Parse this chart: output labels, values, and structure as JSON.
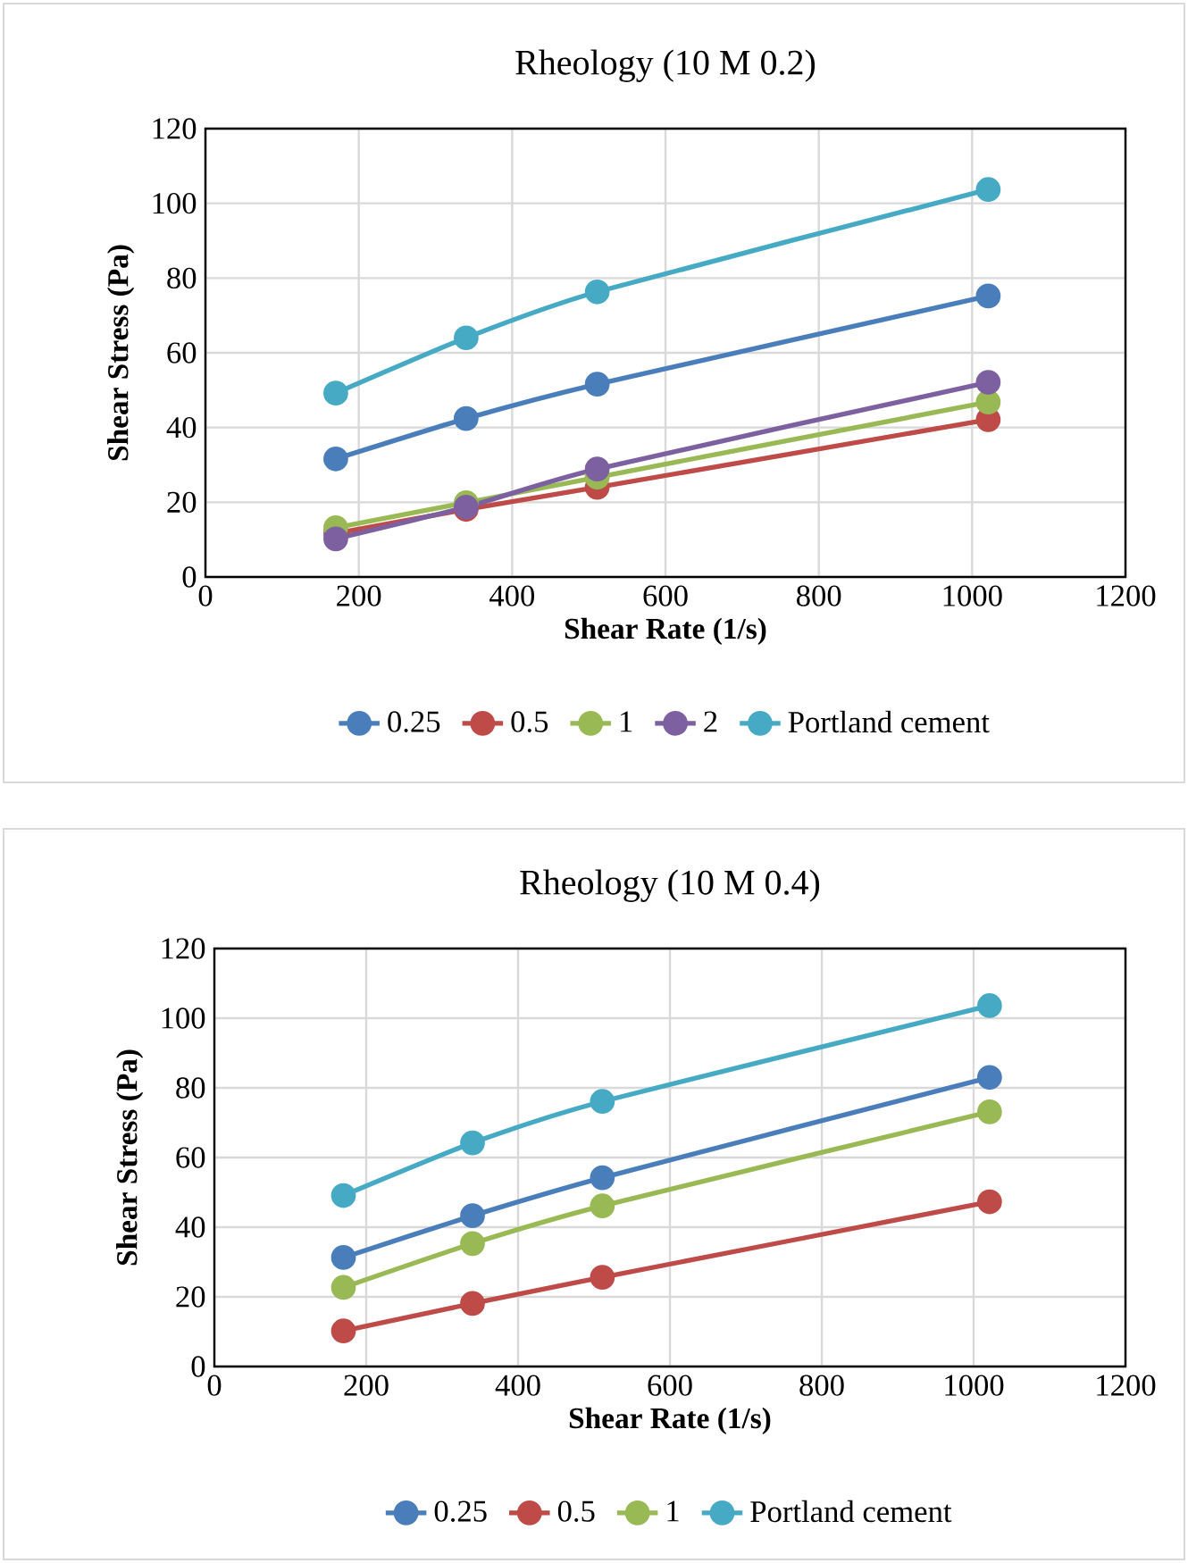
{
  "chart_data": [
    {
      "type": "line",
      "title": "Rheology (10 M 0.2)",
      "xlabel": "Shear Rate (1/s)",
      "ylabel": "Shear Stress (Pa)",
      "x": [
        170,
        340,
        511,
        1021
      ],
      "series": [
        {
          "name": "0.25",
          "color": "#4a7ebb",
          "values": [
            31.6,
            42.4,
            51.6,
            75.2
          ]
        },
        {
          "name": "0.5",
          "color": "#be4b48",
          "values": [
            11.7,
            18.1,
            24.0,
            42.1
          ]
        },
        {
          "name": "1",
          "color": "#98b954",
          "values": [
            13.2,
            19.9,
            26.7,
            46.8
          ]
        },
        {
          "name": "2",
          "color": "#7d60a0",
          "values": [
            10.2,
            18.7,
            28.9,
            52.1
          ]
        },
        {
          "name": "Portland cement",
          "color": "#46aac5",
          "values": [
            49.2,
            64.0,
            76.3,
            103.7
          ]
        }
      ],
      "xlim": [
        0,
        1200
      ],
      "ylim": [
        0,
        120
      ],
      "xticks": [
        0,
        200,
        400,
        600,
        800,
        1000,
        1200
      ],
      "yticks": [
        0,
        20,
        40,
        60,
        80,
        100,
        120
      ],
      "grid": true,
      "legend": "bottom",
      "marker": "circle"
    },
    {
      "type": "line",
      "title": "Rheology (10 M 0.4)",
      "xlabel": "Shear Rate (1/s)",
      "ylabel": "Shear Stress (Pa)",
      "x": [
        170,
        340,
        511,
        1021
      ],
      "series": [
        {
          "name": "0.25",
          "color": "#4a7ebb",
          "values": [
            31.3,
            43.3,
            54.2,
            83.0
          ]
        },
        {
          "name": "0.5",
          "color": "#be4b48",
          "values": [
            10.2,
            18.1,
            25.6,
            47.3
          ]
        },
        {
          "name": "1",
          "color": "#98b954",
          "values": [
            22.7,
            35.3,
            46.1,
            73.1
          ]
        },
        {
          "name": "Portland cement",
          "color": "#46aac5",
          "values": [
            49.1,
            64.2,
            76.1,
            103.6
          ]
        }
      ],
      "xlim": [
        0,
        1200
      ],
      "ylim": [
        0,
        120
      ],
      "xticks": [
        0,
        200,
        400,
        600,
        800,
        1000,
        1200
      ],
      "yticks": [
        0,
        20,
        40,
        60,
        80,
        100,
        120
      ],
      "grid": true,
      "legend": "bottom",
      "marker": "circle"
    }
  ]
}
